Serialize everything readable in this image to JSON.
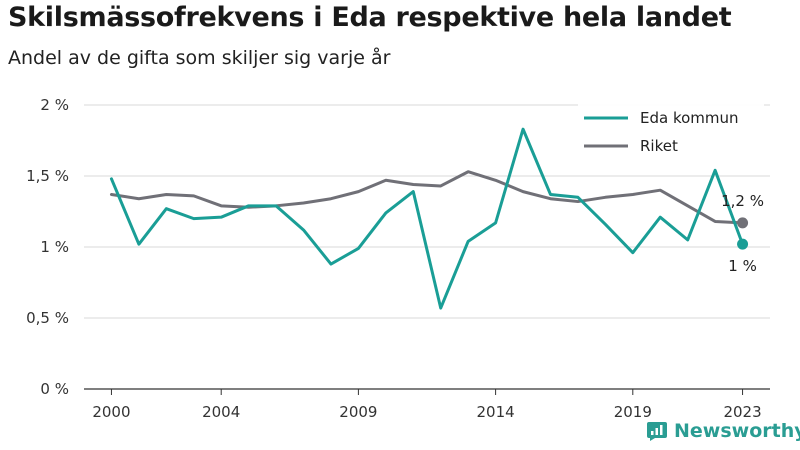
{
  "chart_data": {
    "type": "line",
    "title": "Skilsmässofrekvens i Eda respektive hela landet",
    "subtitle": "Andel av de gifta som skiljer sig varje år",
    "x": [
      2000,
      2001,
      2002,
      2003,
      2004,
      2005,
      2006,
      2007,
      2008,
      2009,
      2010,
      2011,
      2012,
      2013,
      2014,
      2015,
      2016,
      2017,
      2018,
      2019,
      2020,
      2021,
      2022,
      2023
    ],
    "xticks": [
      2000,
      2004,
      2009,
      2014,
      2019,
      2023
    ],
    "yticks": [
      0,
      0.5,
      1,
      1.5,
      2
    ],
    "ytick_labels": [
      "0 %",
      "0,5 %",
      "1 %",
      "1,5 %",
      "2 %"
    ],
    "xlim": [
      1999,
      2024
    ],
    "ylim": [
      0,
      2
    ],
    "grid": "horizontal",
    "legend_position": "top-right",
    "series": [
      {
        "name": "Eda kommun",
        "color": "#1a9e96",
        "values": [
          1.48,
          1.02,
          1.27,
          1.2,
          1.21,
          1.29,
          1.29,
          1.12,
          0.88,
          0.99,
          1.24,
          1.39,
          0.57,
          1.04,
          1.17,
          1.83,
          1.37,
          1.35,
          1.16,
          0.96,
          1.21,
          1.05,
          1.54,
          1.02
        ],
        "end_label": "1 %"
      },
      {
        "name": "Riket",
        "color": "#707077",
        "values": [
          1.37,
          1.34,
          1.37,
          1.36,
          1.29,
          1.28,
          1.29,
          1.31,
          1.34,
          1.39,
          1.47,
          1.44,
          1.43,
          1.53,
          1.47,
          1.39,
          1.34,
          1.32,
          1.35,
          1.37,
          1.4,
          1.29,
          1.18,
          1.17
        ],
        "end_label": "1,2 %"
      }
    ]
  },
  "branding": {
    "name": "Newsworthy",
    "icon": "newsworthy-logo-icon",
    "color": "#2a9d93"
  }
}
